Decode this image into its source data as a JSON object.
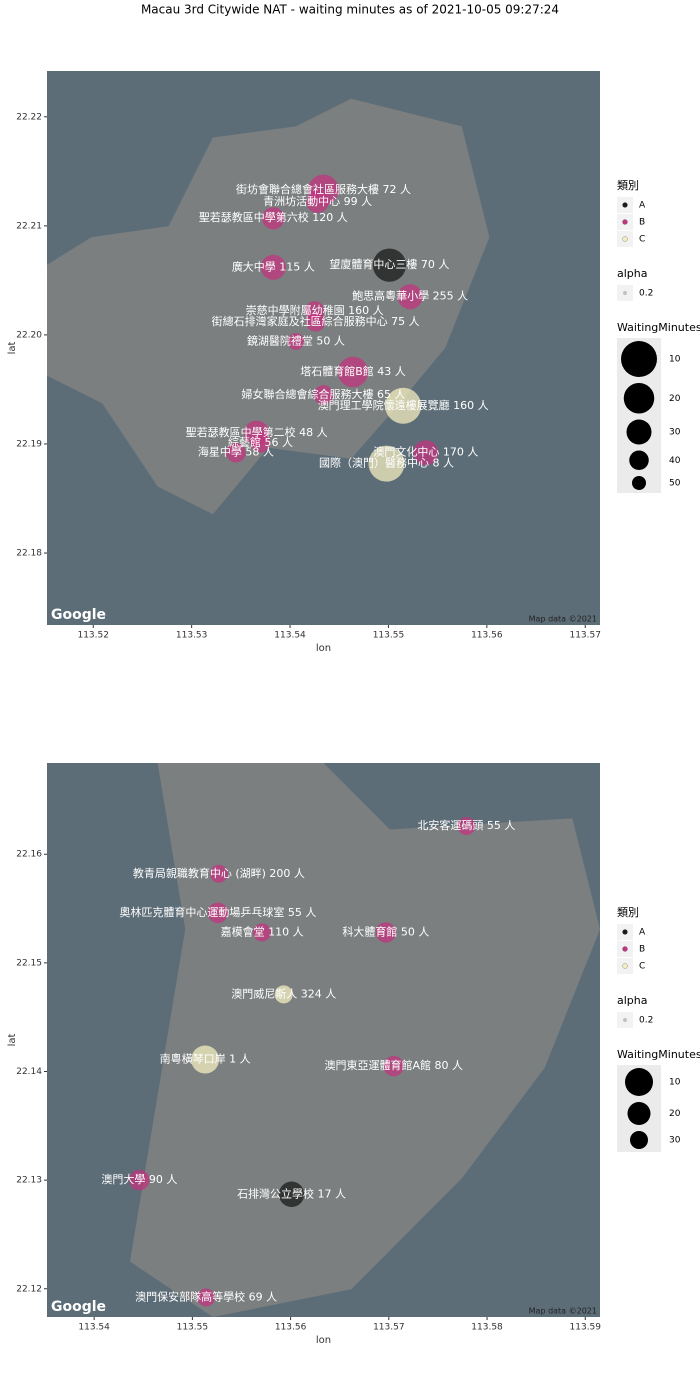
{
  "title": "Macau 3rd Citywide NAT - waiting minutes as of 2021-10-05 09:27:24",
  "chart_data": [
    {
      "type": "scatter",
      "x_label": "lon",
      "y_label": "lat",
      "xlim": [
        113.5153,
        113.5715
      ],
      "ylim": [
        22.1734,
        22.2242
      ],
      "xticks": [
        113.52,
        113.53,
        113.54,
        113.55,
        113.56,
        113.57
      ],
      "yticks": [
        22.18,
        22.19,
        {
          "value": 22.2,
          "label": "22.20"
        },
        22.21,
        22.22
      ],
      "attribution": [
        "Google",
        "Map data ©2021"
      ],
      "legend_color_title": "類別",
      "legend_alpha_title": "alpha",
      "alpha": 0.2,
      "legend_size_title": "WaitingMinutes",
      "size_breaks": [
        10,
        20,
        30,
        40,
        50
      ],
      "series": [
        {
          "name": "A",
          "color": "#1a1a1a",
          "x": [
            113.5501
          ],
          "values": [
            22.2064
          ],
          "sizes": [
            15
          ],
          "labels": [
            "望廈體育中心三樓 70 人"
          ]
        },
        {
          "name": "B",
          "color": "#c2347f",
          "x": [
            113.5434,
            113.5428,
            113.5383,
            113.5383,
            113.5522,
            113.5425,
            113.5426,
            113.5406,
            113.5464,
            113.5434,
            113.5366,
            113.537,
            113.5345,
            113.5538
          ],
          "values": [
            22.2133,
            22.2122,
            22.2107,
            22.2062,
            22.2035,
            22.2022,
            22.2012,
            22.1994,
            22.1966,
            22.1945,
            22.191,
            22.1901,
            22.1892,
            22.1892
          ],
          "sizes": [
            20,
            35,
            35,
            30,
            30,
            40,
            40,
            45,
            20,
            40,
            30,
            40,
            40,
            30
          ],
          "labels": [
            "街坊會聯合總會社區服務大樓 72 人",
            "青洲坊活動中心 99 人",
            "聖若瑟教區中學第六校 120 人",
            "廣大中學 115 人",
            "鮑思高粵華小學 255 人",
            "崇慈中學附屬幼稚園 160 人",
            "街總石排灣家庭及社區綜合服務中心 75 人",
            "鏡湖醫院禮堂 50 人",
            "塔石體育館B館 43 人",
            "婦女聯合總會綜合服務大樓 65 人",
            "聖若瑟教區中學第二校 48 人",
            "綜藝館 56 人",
            "海星中學 58 人",
            "澳門文化中心 170 人"
          ]
        },
        {
          "name": "C",
          "color": "#f3eec0",
          "x": [
            113.5515,
            113.5498
          ],
          "values": [
            22.1935,
            22.1882
          ],
          "sizes": [
            10,
            10
          ],
          "labels": [
            "澳門理工學院懷遠樓展覽廳 160 人",
            "國際（澳門）醫務中心 8 人"
          ]
        }
      ]
    },
    {
      "type": "scatter",
      "x_label": "lon",
      "y_label": "lat",
      "xlim": [
        113.5352,
        113.5915
      ],
      "ylim": [
        22.1174,
        22.1684
      ],
      "xticks": [
        113.54,
        113.55,
        113.56,
        113.57,
        113.58,
        113.59
      ],
      "yticks": [
        22.12,
        22.13,
        22.14,
        22.15,
        22.16
      ],
      "attribution": [
        "Google",
        "Map data ©2021"
      ],
      "legend_color_title": "類別",
      "legend_alpha_title": "alpha",
      "alpha": 0.2,
      "legend_size_title": "WaitingMinutes",
      "size_breaks": [
        10,
        20,
        30
      ],
      "series": [
        {
          "name": "A",
          "color": "#1a1a1a",
          "x": [
            113.5601
          ],
          "values": [
            22.1287
          ],
          "sizes": [
            15
          ],
          "labels": [
            "石排灣公立學校 17 人"
          ]
        },
        {
          "name": "B",
          "color": "#c2347f",
          "x": [
            113.5779,
            113.5527,
            113.5526,
            113.5571,
            113.5697,
            113.5705,
            113.5446,
            113.5514
          ],
          "values": [
            22.1626,
            22.1582,
            22.1546,
            22.1528,
            22.1528,
            22.1405,
            22.13,
            22.1192
          ],
          "sizes": [
            30,
            30,
            25,
            30,
            25,
            25,
            25,
            30
          ],
          "labels": [
            "北安客運碼頭 55 人",
            "教青局親職教育中心 (湖畔) 200 人",
            "奧林匹克體育中心運動場乒乓球室 55 人",
            "嘉模會堂 110 人",
            "科大體育館 50 人",
            "澳門東亞運體育館A館 80 人",
            "澳門大學 90 人",
            "澳門保安部隊高等學校 69 人"
          ]
        },
        {
          "name": "C",
          "color": "#f3eec0",
          "x": [
            113.5593,
            113.5513
          ],
          "values": [
            22.1471,
            22.1411
          ],
          "sizes": [
            30,
            10
          ],
          "labels": [
            "澳門威尼斯人 324 人",
            "南粵橫琴口岸 1 人"
          ]
        }
      ]
    }
  ]
}
